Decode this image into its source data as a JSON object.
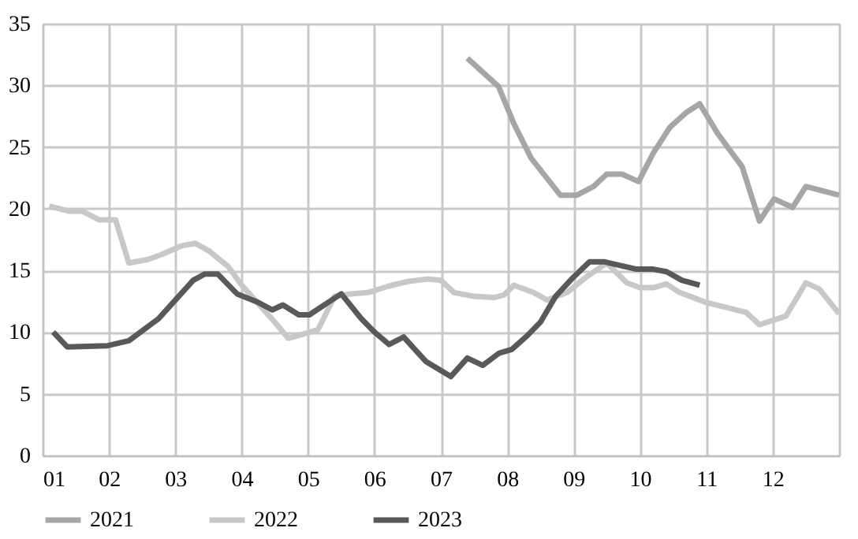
{
  "chart_data": {
    "type": "line",
    "xlim": [
      1,
      13
    ],
    "ylim": [
      0,
      35
    ],
    "xticks": [
      {
        "value": 1,
        "label": "01"
      },
      {
        "value": 2,
        "label": "02"
      },
      {
        "value": 3,
        "label": "03"
      },
      {
        "value": 4,
        "label": "04"
      },
      {
        "value": 5,
        "label": "05"
      },
      {
        "value": 6,
        "label": "06"
      },
      {
        "value": 7,
        "label": "07"
      },
      {
        "value": 8,
        "label": "08"
      },
      {
        "value": 9,
        "label": "09"
      },
      {
        "value": 10,
        "label": "10"
      },
      {
        "value": 11,
        "label": "11"
      },
      {
        "value": 12,
        "label": "12"
      },
      {
        "value": 13,
        "label": null
      }
    ],
    "yticks": [
      0,
      5,
      10,
      15,
      20,
      25,
      30,
      35
    ],
    "grid": true,
    "legend": "bottom",
    "marker": "none",
    "line_style": "solid",
    "series": [
      {
        "name": "2021",
        "color": "#a6a6a6",
        "x": [
          7.4,
          7.87,
          8.1,
          8.36,
          8.8,
          9.05,
          9.3,
          9.5,
          9.73,
          9.98,
          10.2,
          10.45,
          10.7,
          10.9,
          11.17,
          11.54,
          11.8,
          12.02,
          12.3,
          12.5,
          13.0
        ],
        "values": [
          32.2,
          29.9,
          26.9,
          24.1,
          21.1,
          21.1,
          21.8,
          22.8,
          22.8,
          22.2,
          24.5,
          26.6,
          27.8,
          28.5,
          26.1,
          23.4,
          19.0,
          20.8,
          20.1,
          21.8,
          21.1
        ]
      },
      {
        "name": "2022",
        "color": "#c8c8c8",
        "x": [
          1.1,
          1.4,
          1.6,
          1.85,
          2.1,
          2.3,
          2.6,
          2.8,
          3.1,
          3.3,
          3.5,
          3.8,
          4.0,
          4.3,
          4.5,
          4.7,
          4.9,
          5.15,
          5.4,
          5.65,
          5.9,
          6.2,
          6.5,
          6.8,
          7.0,
          7.2,
          7.5,
          7.8,
          7.95,
          8.1,
          8.4,
          8.6,
          8.9,
          9.2,
          9.5,
          9.8,
          10.0,
          10.2,
          10.4,
          10.6,
          11.0,
          11.3,
          11.6,
          11.8,
          12.2,
          12.5,
          12.7,
          13.0
        ],
        "values": [
          20.2,
          19.8,
          19.8,
          19.1,
          19.1,
          15.6,
          15.9,
          16.3,
          17.0,
          17.2,
          16.6,
          15.3,
          13.8,
          12.0,
          10.8,
          9.5,
          9.8,
          10.2,
          12.9,
          13.1,
          13.2,
          13.7,
          14.1,
          14.3,
          14.2,
          13.2,
          12.9,
          12.8,
          13.0,
          13.8,
          13.2,
          12.6,
          13.2,
          14.5,
          15.6,
          14.0,
          13.6,
          13.6,
          13.9,
          13.2,
          12.4,
          12.0,
          11.6,
          10.6,
          11.3,
          14.0,
          13.5,
          11.5
        ]
      },
      {
        "name": "2023",
        "color": "#595959",
        "x": [
          1.16,
          1.37,
          1.98,
          2.3,
          2.75,
          3.27,
          3.44,
          3.64,
          3.93,
          4.25,
          4.46,
          4.62,
          4.86,
          5.02,
          5.3,
          5.5,
          5.8,
          6.0,
          6.22,
          6.44,
          6.66,
          6.78,
          7.15,
          7.4,
          7.63,
          7.88,
          8.07,
          8.3,
          8.5,
          8.73,
          8.97,
          9.24,
          9.46,
          9.7,
          9.95,
          10.2,
          10.4,
          10.63,
          10.9
        ],
        "values": [
          10.0,
          8.8,
          8.9,
          9.3,
          11.1,
          14.2,
          14.7,
          14.7,
          13.1,
          12.4,
          11.8,
          12.2,
          11.4,
          11.4,
          12.4,
          13.1,
          11.1,
          10.0,
          9.0,
          9.6,
          8.3,
          7.6,
          6.4,
          7.9,
          7.3,
          8.3,
          8.6,
          9.7,
          10.8,
          12.9,
          14.3,
          15.7,
          15.7,
          15.4,
          15.1,
          15.1,
          14.9,
          14.2,
          13.8
        ]
      }
    ]
  }
}
